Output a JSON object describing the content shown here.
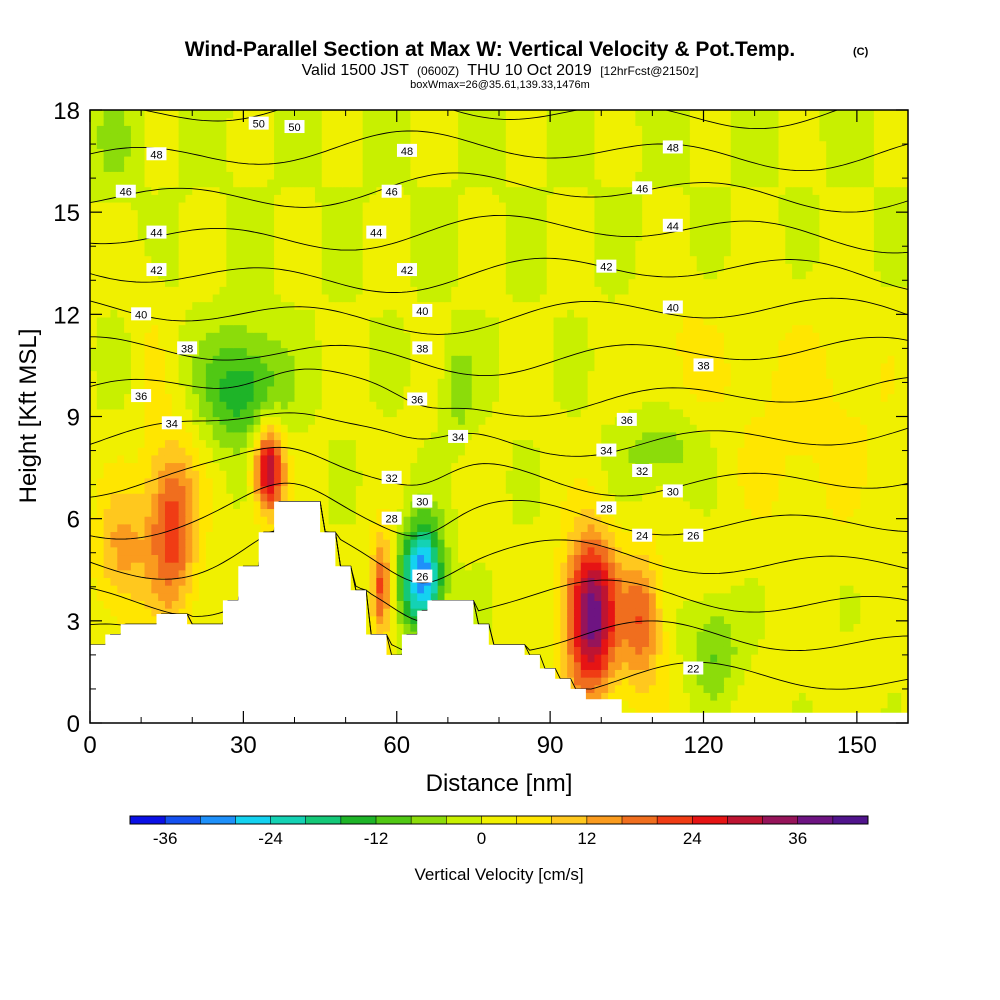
{
  "chart_data": {
    "type": "heatmap",
    "title": "Wind-Parallel Section at Max W: Vertical Velocity & Pot.Temp.",
    "title_mark": "(C)",
    "subtitle_valid": "Valid 1500 JST",
    "subtitle_utc": "(0600Z)",
    "subtitle_date": "THU 10 Oct 2019",
    "subtitle_fcst": "[12hrFcst@2150z]",
    "subtitle_box": "boxWmax=26@35.61,139.33,1476m",
    "xlabel": "Distance [nm]",
    "ylabel": "Height [Kft MSL]",
    "xlim": [
      0,
      160
    ],
    "ylim": [
      0,
      18
    ],
    "xticks": [
      0,
      30,
      60,
      90,
      120,
      150
    ],
    "yticks": [
      0,
      3,
      6,
      9,
      12,
      15,
      18
    ],
    "colorbar": {
      "label": "Vertical Velocity [cm/s]",
      "ticks": [
        -36,
        -24,
        -12,
        0,
        12,
        24,
        36
      ],
      "colors": [
        "#0a10e6",
        "#1450f0",
        "#1e90fa",
        "#14d2f0",
        "#14d2b4",
        "#14c878",
        "#1eb428",
        "#50c814",
        "#8cdc0a",
        "#c8f000",
        "#f0f000",
        "#ffe600",
        "#ffc81e",
        "#fa9b1e",
        "#f06e1e",
        "#f03c14",
        "#e61414",
        "#be1432",
        "#96145a",
        "#6e1482",
        "#50148c"
      ],
      "range": [
        -40,
        44
      ]
    },
    "terrain": [
      [
        0,
        2.3
      ],
      [
        3,
        2.3
      ],
      [
        3,
        2.6
      ],
      [
        6,
        2.6
      ],
      [
        6,
        2.9
      ],
      [
        13,
        2.9
      ],
      [
        13,
        3.2
      ],
      [
        19,
        3.2
      ],
      [
        19,
        2.9
      ],
      [
        26,
        2.9
      ],
      [
        26,
        3.6
      ],
      [
        29,
        3.6
      ],
      [
        29,
        4.6
      ],
      [
        33,
        4.6
      ],
      [
        33,
        5.6
      ],
      [
        36,
        5.6
      ],
      [
        36,
        6.5
      ],
      [
        45,
        6.5
      ],
      [
        45,
        5.6
      ],
      [
        48,
        5.6
      ],
      [
        48,
        4.6
      ],
      [
        51,
        4.6
      ],
      [
        51,
        3.9
      ],
      [
        54,
        3.9
      ],
      [
        54,
        2.6
      ],
      [
        58,
        2.6
      ],
      [
        58,
        2.0
      ],
      [
        61,
        2.0
      ],
      [
        61,
        2.6
      ],
      [
        64,
        2.6
      ],
      [
        64,
        3.3
      ],
      [
        66,
        3.3
      ],
      [
        66,
        3.6
      ],
      [
        75,
        3.6
      ],
      [
        75,
        2.9
      ],
      [
        78,
        2.9
      ],
      [
        78,
        2.3
      ],
      [
        85,
        2.3
      ],
      [
        85,
        2.0
      ],
      [
        88,
        2.0
      ],
      [
        88,
        1.6
      ],
      [
        91,
        1.6
      ],
      [
        91,
        1.3
      ],
      [
        94,
        1.3
      ],
      [
        94,
        1.0
      ],
      [
        97,
        1.0
      ],
      [
        97,
        0.7
      ],
      [
        104,
        0.7
      ],
      [
        104,
        0.3
      ],
      [
        160,
        0.3
      ]
    ],
    "velocity_blobs": [
      {
        "x": 6,
        "y": 5.0,
        "rx": 5,
        "ry": 2.0,
        "w": 12
      },
      {
        "x": 16,
        "y": 5.8,
        "rx": 5,
        "ry": 2.5,
        "w": 22
      },
      {
        "x": 35,
        "y": 7.5,
        "rx": 3,
        "ry": 1.3,
        "w": 32
      },
      {
        "x": 30,
        "y": 9.8,
        "rx": 8,
        "ry": 1.7,
        "w": -16
      },
      {
        "x": 57,
        "y": 4.0,
        "rx": 2,
        "ry": 1.5,
        "w": 22
      },
      {
        "x": 65,
        "y": 4.3,
        "rx": 4,
        "ry": 1.6,
        "w": -34
      },
      {
        "x": 98,
        "y": 3.2,
        "rx": 5,
        "ry": 2.3,
        "w": 38
      },
      {
        "x": 108,
        "y": 3.0,
        "rx": 4,
        "ry": 2.0,
        "w": 18
      },
      {
        "x": 112,
        "y": 8.0,
        "rx": 8,
        "ry": 1.2,
        "w": -8
      },
      {
        "x": 122,
        "y": 2.2,
        "rx": 5,
        "ry": 1.5,
        "w": -10
      },
      {
        "x": 72,
        "y": 9.8,
        "rx": 3,
        "ry": 1.3,
        "w": -8
      },
      {
        "x": 140,
        "y": 9.0,
        "rx": 18,
        "ry": 3.5,
        "w": 5
      },
      {
        "x": 115,
        "y": 11.0,
        "rx": 8,
        "ry": 2.0,
        "w": 4
      },
      {
        "x": 5,
        "y": 17.0,
        "rx": 4,
        "ry": 1.2,
        "w": -5
      },
      {
        "x": 12,
        "y": 11.0,
        "rx": 3,
        "ry": 3.0,
        "w": 3
      }
    ],
    "theta_contours": [
      22,
      24,
      26,
      28,
      30,
      32,
      34,
      36,
      38,
      40,
      42,
      44,
      46,
      48,
      50
    ],
    "theta_labels": [
      {
        "text": "50",
        "x": 33,
        "y": 17.6
      },
      {
        "text": "50",
        "x": 40,
        "y": 17.5
      },
      {
        "text": "48",
        "x": 13,
        "y": 16.7
      },
      {
        "text": "48",
        "x": 62,
        "y": 16.8
      },
      {
        "text": "48",
        "x": 114,
        "y": 16.9
      },
      {
        "text": "46",
        "x": 7,
        "y": 15.6
      },
      {
        "text": "46",
        "x": 59,
        "y": 15.6
      },
      {
        "text": "46",
        "x": 108,
        "y": 15.7
      },
      {
        "text": "44",
        "x": 13,
        "y": 14.4
      },
      {
        "text": "44",
        "x": 56,
        "y": 14.4
      },
      {
        "text": "44",
        "x": 114,
        "y": 14.6
      },
      {
        "text": "42",
        "x": 13,
        "y": 13.3
      },
      {
        "text": "42",
        "x": 62,
        "y": 13.3
      },
      {
        "text": "42",
        "x": 101,
        "y": 13.4
      },
      {
        "text": "40",
        "x": 10,
        "y": 12.0
      },
      {
        "text": "40",
        "x": 65,
        "y": 12.1
      },
      {
        "text": "40",
        "x": 114,
        "y": 12.2
      },
      {
        "text": "38",
        "x": 19,
        "y": 11.0
      },
      {
        "text": "38",
        "x": 65,
        "y": 11.0
      },
      {
        "text": "38",
        "x": 120,
        "y": 10.5
      },
      {
        "text": "36",
        "x": 10,
        "y": 9.6
      },
      {
        "text": "36",
        "x": 64,
        "y": 9.5
      },
      {
        "text": "36",
        "x": 105,
        "y": 8.9
      },
      {
        "text": "34",
        "x": 16,
        "y": 8.8
      },
      {
        "text": "34",
        "x": 72,
        "y": 8.4
      },
      {
        "text": "34",
        "x": 101,
        "y": 8.0
      },
      {
        "text": "32",
        "x": 59,
        "y": 7.2
      },
      {
        "text": "32",
        "x": 108,
        "y": 7.4
      },
      {
        "text": "30",
        "x": 65,
        "y": 6.5
      },
      {
        "text": "30",
        "x": 114,
        "y": 6.8
      },
      {
        "text": "28",
        "x": 59,
        "y": 6.0
      },
      {
        "text": "28",
        "x": 101,
        "y": 6.3
      },
      {
        "text": "26",
        "x": 65,
        "y": 4.3
      },
      {
        "text": "26",
        "x": 118,
        "y": 5.5
      },
      {
        "text": "24",
        "x": 108,
        "y": 5.5
      },
      {
        "text": "22",
        "x": 118,
        "y": 1.6
      }
    ]
  }
}
